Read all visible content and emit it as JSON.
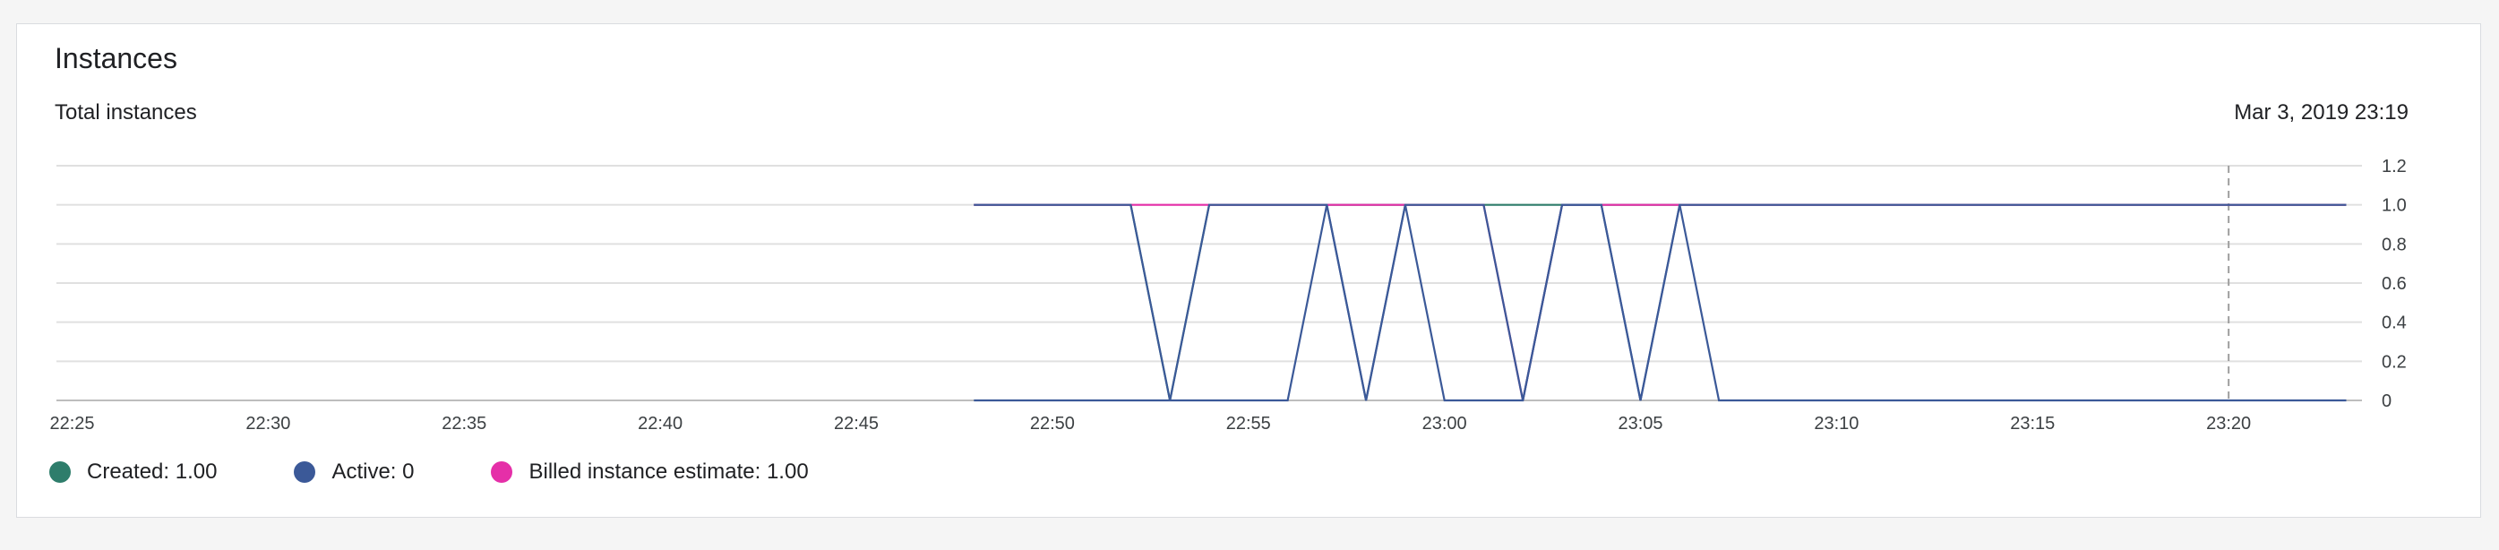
{
  "card": {
    "title": "Instances",
    "subtitle": "Total instances",
    "timestamp": "Mar 3, 2019 23:19"
  },
  "colors": {
    "created": "#2e7d6b",
    "active": "#3b5998",
    "billed": "#e52fa8",
    "grid": "#e0e0e0",
    "axis": "#bdbdbd",
    "cursor": "#9e9e9e"
  },
  "legend": [
    {
      "key": "created",
      "label": "Created: 1.00"
    },
    {
      "key": "active",
      "label": "Active: 0"
    },
    {
      "key": "billed",
      "label": "Billed instance estimate: 1.00"
    }
  ],
  "chart_data": {
    "type": "line",
    "title": "Total instances",
    "x_ticks": [
      "22:25",
      "22:30",
      "22:35",
      "22:40",
      "22:45",
      "22:50",
      "22:55",
      "23:00",
      "23:05",
      "23:10",
      "23:15",
      "23:20"
    ],
    "xlim": [
      "22:24.6",
      "23:23.4"
    ],
    "y_ticks": [
      "0",
      "0.2",
      "0.4",
      "0.6",
      "0.8",
      "1.0",
      "1.2"
    ],
    "ylim": [
      0,
      1.2
    ],
    "grid": true,
    "legend_position": "bottom",
    "cursor_time": "23:20",
    "series": [
      {
        "name": "Created",
        "key": "created",
        "points": [
          [
            "22:48",
            1
          ],
          [
            "22:52",
            1
          ],
          [
            "22:53",
            0
          ],
          [
            "22:54",
            1
          ],
          [
            "23:23",
            1
          ]
        ]
      },
      {
        "name": "Billed instance estimate",
        "key": "billed",
        "points": [
          [
            "22:48",
            1
          ],
          [
            "22:52",
            1
          ],
          [
            "22:54",
            1
          ],
          [
            "23:01",
            1
          ],
          [
            "23:02",
            0
          ],
          [
            "23:03",
            1
          ],
          [
            "23:23",
            1
          ]
        ]
      },
      {
        "name": "Active",
        "key": "active",
        "points": [
          [
            "22:48",
            1
          ],
          [
            "22:52",
            1
          ],
          [
            "22:53",
            0
          ],
          [
            "22:54",
            1
          ],
          [
            "22:57",
            1
          ],
          [
            "22:58",
            0
          ],
          [
            "22:59",
            1
          ],
          [
            "23:01",
            1
          ],
          [
            "23:02",
            0
          ],
          [
            "23:03",
            1
          ],
          [
            "23:04",
            1
          ],
          [
            "23:05",
            0
          ],
          [
            "23:06",
            1
          ],
          [
            "23:23",
            1
          ]
        ]
      },
      {
        "name": "Active",
        "key": "active",
        "points": [
          [
            "22:48",
            0
          ],
          [
            "22:56",
            0
          ],
          [
            "22:57",
            1
          ],
          [
            "22:58",
            0
          ],
          [
            "22:59",
            1
          ],
          [
            "23:00",
            0
          ],
          [
            "23:02",
            0
          ],
          [
            "23:03",
            1
          ],
          [
            "23:04",
            1
          ],
          [
            "23:05",
            0
          ],
          [
            "23:06",
            1
          ],
          [
            "23:07",
            0
          ],
          [
            "23:23",
            0
          ]
        ]
      }
    ]
  }
}
